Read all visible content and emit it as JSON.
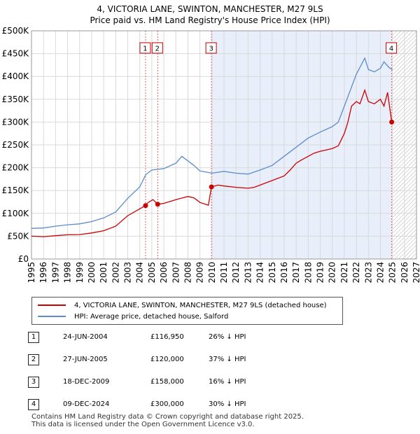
{
  "title": {
    "line1": "4, VICTORIA LANE, SWINTON, MANCHESTER, M27 9LS",
    "line2": "Price paid vs. HM Land Registry's House Price Index (HPI)"
  },
  "colors": {
    "price_line": "#cc0000",
    "hpi_line": "#5b8ccc",
    "shade": "#e8eefa",
    "hatch": "#b0b0b0",
    "grid": "#d9d9d9",
    "vline": "#e06060"
  },
  "chart_data": {
    "type": "line",
    "xlim": [
      1995,
      2027
    ],
    "ylim": [
      0,
      500000
    ],
    "x_ticks": [
      "1995",
      "1996",
      "1997",
      "1998",
      "1999",
      "2000",
      "2001",
      "2002",
      "2003",
      "2004",
      "2005",
      "2006",
      "2007",
      "2008",
      "2009",
      "2010",
      "2011",
      "2012",
      "2013",
      "2014",
      "2015",
      "2016",
      "2017",
      "2018",
      "2019",
      "2020",
      "2021",
      "2022",
      "2023",
      "2024",
      "2025",
      "2026",
      "2027"
    ],
    "y_ticks": [
      {
        "value": 0,
        "label": "£0"
      },
      {
        "value": 50000,
        "label": "£50K"
      },
      {
        "value": 100000,
        "label": "£100K"
      },
      {
        "value": 150000,
        "label": "£150K"
      },
      {
        "value": 200000,
        "label": "£200K"
      },
      {
        "value": 250000,
        "label": "£250K"
      },
      {
        "value": 300000,
        "label": "£300K"
      },
      {
        "value": 350000,
        "label": "£350K"
      },
      {
        "value": 400000,
        "label": "£400K"
      },
      {
        "value": 450000,
        "label": "£450K"
      },
      {
        "value": 500000,
        "label": "£500K"
      }
    ],
    "shaded_range": [
      2009.96,
      2024.94
    ],
    "hatched_range": [
      2025.05,
      2027
    ],
    "series": [
      {
        "name": "4, VICTORIA LANE, SWINTON, MANCHESTER, M27 9LS (detached house)",
        "color": "#cc0000",
        "points": [
          [
            1995,
            50000
          ],
          [
            1996,
            49000
          ],
          [
            1997,
            51000
          ],
          [
            1998,
            53000
          ],
          [
            1999,
            53500
          ],
          [
            2000,
            57000
          ],
          [
            2001,
            62000
          ],
          [
            2002,
            72000
          ],
          [
            2003,
            95000
          ],
          [
            2004,
            110000
          ],
          [
            2004.48,
            116950
          ],
          [
            2004.7,
            124000
          ],
          [
            2005.1,
            130000
          ],
          [
            2005.49,
            120000
          ],
          [
            2006,
            122000
          ],
          [
            2007,
            130000
          ],
          [
            2008,
            137000
          ],
          [
            2008.5,
            134000
          ],
          [
            2009,
            124000
          ],
          [
            2009.7,
            118000
          ],
          [
            2009.96,
            158000
          ],
          [
            2010.5,
            162000
          ],
          [
            2011,
            160000
          ],
          [
            2012,
            157000
          ],
          [
            2013,
            155000
          ],
          [
            2013.5,
            157000
          ],
          [
            2014,
            162000
          ],
          [
            2015,
            172000
          ],
          [
            2016,
            182000
          ],
          [
            2016.5,
            195000
          ],
          [
            2017,
            210000
          ],
          [
            2017.5,
            218000
          ],
          [
            2018,
            225000
          ],
          [
            2018.5,
            232000
          ],
          [
            2019,
            236000
          ],
          [
            2020,
            242000
          ],
          [
            2020.5,
            248000
          ],
          [
            2021,
            275000
          ],
          [
            2021.3,
            300000
          ],
          [
            2021.6,
            335000
          ],
          [
            2022,
            345000
          ],
          [
            2022.3,
            340000
          ],
          [
            2022.7,
            370000
          ],
          [
            2023,
            345000
          ],
          [
            2023.5,
            340000
          ],
          [
            2024,
            350000
          ],
          [
            2024.3,
            335000
          ],
          [
            2024.6,
            365000
          ],
          [
            2024.94,
            300000
          ],
          [
            2025.05,
            296000
          ]
        ]
      },
      {
        "name": "HPI: Average price, detached house, Salford",
        "color": "#5b8ccc",
        "points": [
          [
            1995,
            67000
          ],
          [
            1996,
            68000
          ],
          [
            1997,
            72000
          ],
          [
            1998,
            75000
          ],
          [
            1999,
            77000
          ],
          [
            2000,
            82000
          ],
          [
            2001,
            90000
          ],
          [
            2002,
            103000
          ],
          [
            2003,
            133000
          ],
          [
            2004,
            158000
          ],
          [
            2004.5,
            185000
          ],
          [
            2005,
            195000
          ],
          [
            2006,
            198000
          ],
          [
            2007,
            210000
          ],
          [
            2007.5,
            225000
          ],
          [
            2008,
            215000
          ],
          [
            2008.5,
            205000
          ],
          [
            2009,
            193000
          ],
          [
            2010,
            188000
          ],
          [
            2011,
            192000
          ],
          [
            2012,
            188000
          ],
          [
            2013,
            186000
          ],
          [
            2014,
            195000
          ],
          [
            2015,
            205000
          ],
          [
            2016,
            225000
          ],
          [
            2017,
            245000
          ],
          [
            2018,
            265000
          ],
          [
            2019,
            278000
          ],
          [
            2020,
            290000
          ],
          [
            2020.5,
            300000
          ],
          [
            2021,
            335000
          ],
          [
            2021.5,
            370000
          ],
          [
            2022,
            405000
          ],
          [
            2022.3,
            420000
          ],
          [
            2022.7,
            440000
          ],
          [
            2023,
            415000
          ],
          [
            2023.5,
            410000
          ],
          [
            2024,
            418000
          ],
          [
            2024.3,
            432000
          ],
          [
            2024.7,
            420000
          ],
          [
            2025,
            415000
          ]
        ]
      }
    ],
    "transactions": [
      {
        "num": "1",
        "date": "24-JUN-2004",
        "x": 2004.48,
        "price": 116950,
        "price_label": "£116,950",
        "hpi_diff": "26% ↓ HPI"
      },
      {
        "num": "2",
        "date": "27-JUN-2005",
        "x": 2005.49,
        "price": 120000,
        "price_label": "£120,000",
        "hpi_diff": "37% ↓ HPI"
      },
      {
        "num": "3",
        "date": "18-DEC-2009",
        "x": 2009.96,
        "price": 158000,
        "price_label": "£158,000",
        "hpi_diff": "16% ↓ HPI"
      },
      {
        "num": "4",
        "date": "09-DEC-2024",
        "x": 2024.94,
        "price": 300000,
        "price_label": "£300,000",
        "hpi_diff": "30% ↓ HPI"
      }
    ]
  },
  "legend": {
    "price_label": "4, VICTORIA LANE, SWINTON, MANCHESTER, M27 9LS (detached house)",
    "hpi_label": "HPI: Average price, detached house, Salford"
  },
  "footer": {
    "line1": "Contains HM Land Registry data © Crown copyright and database right 2025.",
    "line2": "This data is licensed under the Open Government Licence v3.0."
  }
}
